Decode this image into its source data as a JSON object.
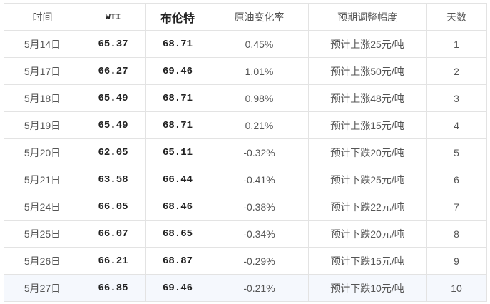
{
  "table": {
    "headers": [
      "时间",
      "WTI",
      "布伦特",
      "原油变化率",
      "预期调整幅度",
      "天数"
    ],
    "rows": [
      [
        "5月14日",
        "65.37",
        "68.71",
        "0.45%",
        "预计上涨25元/吨",
        "1"
      ],
      [
        "5月17日",
        "66.27",
        "69.46",
        "1.01%",
        "预计上涨50元/吨",
        "2"
      ],
      [
        "5月18日",
        "65.49",
        "68.71",
        "0.98%",
        "预计上涨48元/吨",
        "3"
      ],
      [
        "5月19日",
        "65.49",
        "68.71",
        "0.21%",
        "预计上涨15元/吨",
        "4"
      ],
      [
        "5月20日",
        "62.05",
        "65.11",
        "-0.32%",
        "预计下跌20元/吨",
        "5"
      ],
      [
        "5月21日",
        "63.58",
        "66.44",
        "-0.41%",
        "预计下跌25元/吨",
        "6"
      ],
      [
        "5月24日",
        "66.05",
        "68.46",
        "-0.38%",
        "预计下跌22元/吨",
        "7"
      ],
      [
        "5月25日",
        "66.07",
        "68.65",
        "-0.34%",
        "预计下跌20元/吨",
        "8"
      ],
      [
        "5月26日",
        "66.21",
        "68.87",
        "-0.29%",
        "预计下跌15元/吨",
        "9"
      ],
      [
        "5月27日",
        "66.85",
        "69.46",
        "-0.21%",
        "预计下跌10元/吨",
        "10"
      ]
    ]
  }
}
